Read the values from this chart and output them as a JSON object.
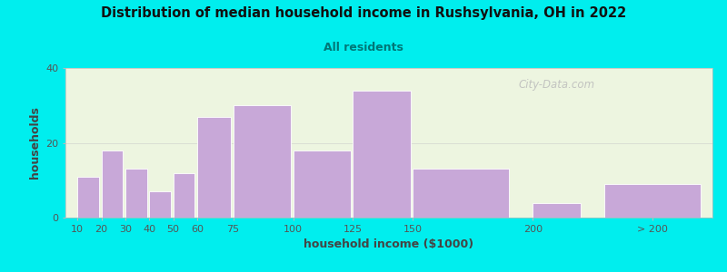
{
  "title": "Distribution of median household income in Rushsylvania, OH in 2022",
  "subtitle": "All residents",
  "xlabel": "household income ($1000)",
  "ylabel": "households",
  "background_outer": "#00EEEE",
  "background_inner": "#edf5e0",
  "bar_color": "#c8a8d8",
  "bar_edge_color": "#ffffff",
  "title_color": "#111111",
  "subtitle_color": "#007777",
  "axis_label_color": "#444444",
  "tick_label_color": "#555555",
  "watermark": "City-Data.com",
  "values": [
    11,
    18,
    13,
    7,
    12,
    27,
    30,
    18,
    34,
    13,
    4,
    9
  ],
  "bar_lefts": [
    10,
    20,
    30,
    40,
    50,
    60,
    75,
    100,
    125,
    150,
    200,
    230
  ],
  "bar_widths": [
    9,
    9,
    9,
    9,
    9,
    14,
    24,
    24,
    24,
    40,
    20,
    40
  ],
  "xlim": [
    5,
    275
  ],
  "ylim": [
    0,
    40
  ],
  "yticks": [
    0,
    20,
    40
  ],
  "xtick_positions": [
    10,
    20,
    30,
    40,
    50,
    60,
    75,
    100,
    125,
    150,
    200,
    250
  ],
  "xtick_labels": [
    "10",
    "20",
    "30",
    "40",
    "50",
    "60",
    "75",
    "100",
    "125",
    "150",
    "200",
    "> 200"
  ]
}
